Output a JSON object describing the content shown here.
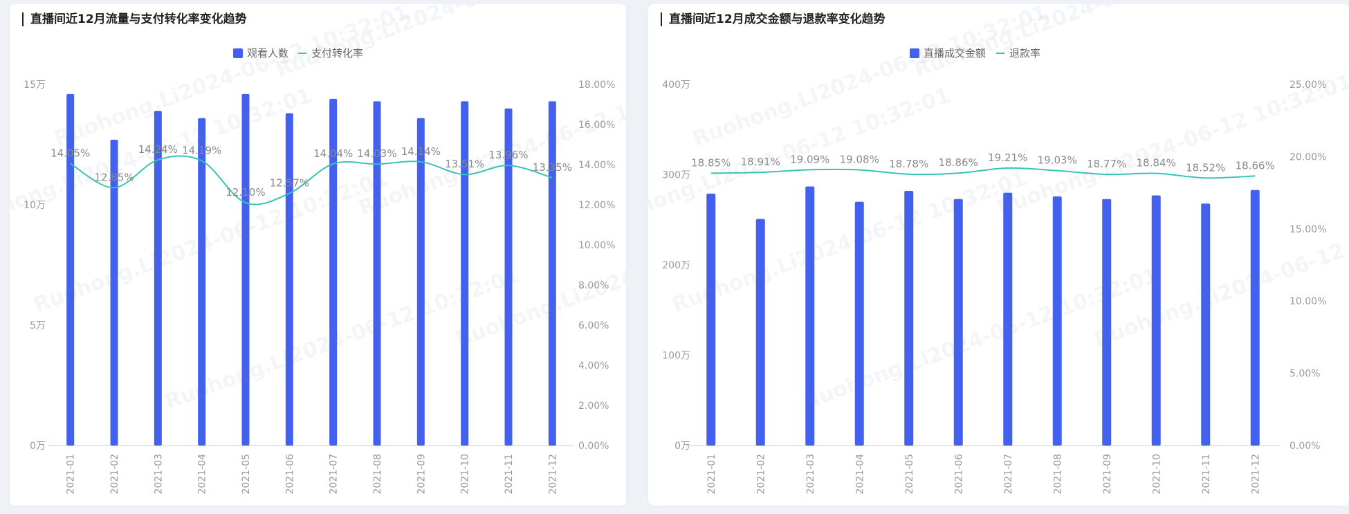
{
  "watermark": "Ruohong.Li2024-06-12 10:32:01",
  "colors": {
    "bar": "#4361ee",
    "line": "#36c5b4",
    "axis_text": "#9a9a9a",
    "label": "#8a8a8a"
  },
  "chart_data": [
    {
      "id": "traffic",
      "type": "bar",
      "title": "直播间近12月流量与支付转化率变化趋势",
      "categories": [
        "2021-01",
        "2021-02",
        "2021-03",
        "2021-04",
        "2021-05",
        "2021-06",
        "2021-07",
        "2021-08",
        "2021-09",
        "2021-10",
        "2021-11",
        "2021-12"
      ],
      "y_left": {
        "ticks": [
          "0万",
          "5万",
          "10万",
          "15万"
        ],
        "min": 0,
        "max": 150000
      },
      "y_right": {
        "ticks": [
          "0.00%",
          "2.00%",
          "4.00%",
          "6.00%",
          "8.00%",
          "10.00%",
          "12.00%",
          "14.00%",
          "16.00%",
          "18.00%"
        ],
        "min": 0,
        "max": 18
      },
      "series": [
        {
          "name": "观看人数",
          "kind": "bar",
          "axis": "left",
          "values": [
            146000,
            127000,
            139000,
            136000,
            146000,
            138000,
            144000,
            143000,
            136000,
            143000,
            140000,
            143000
          ]
        },
        {
          "name": "支付转化率",
          "kind": "line",
          "axis": "right",
          "values": [
            14.05,
            12.85,
            14.24,
            14.19,
            12.1,
            12.57,
            14.04,
            14.03,
            14.14,
            13.51,
            13.96,
            13.35
          ],
          "labels": [
            "14.05%",
            "12.85%",
            "14.24%",
            "14.19%",
            "12.10%",
            "12.57%",
            "14.04%",
            "14.03%",
            "14.14%",
            "13.51%",
            "13.96%",
            "13.35%"
          ]
        }
      ]
    },
    {
      "id": "gmv",
      "type": "bar",
      "title": "直播间近12月成交金额与退款率变化趋势",
      "categories": [
        "2021-01",
        "2021-02",
        "2021-03",
        "2021-04",
        "2021-05",
        "2021-06",
        "2021-07",
        "2021-08",
        "2021-09",
        "2021-10",
        "2021-11",
        "2021-12"
      ],
      "y_left": {
        "ticks": [
          "0万",
          "100万",
          "200万",
          "300万",
          "400万"
        ],
        "min": 0,
        "max": 4000000
      },
      "y_right": {
        "ticks": [
          "0.00%",
          "5.00%",
          "10.00%",
          "15.00%",
          "20.00%",
          "25.00%"
        ],
        "min": 0,
        "max": 25
      },
      "series": [
        {
          "name": "直播成交金额",
          "kind": "bar",
          "axis": "left",
          "values": [
            2790000,
            2510000,
            2870000,
            2700000,
            2820000,
            2730000,
            2800000,
            2760000,
            2730000,
            2770000,
            2680000,
            2830000
          ]
        },
        {
          "name": "退款率",
          "kind": "line",
          "axis": "right",
          "values": [
            18.85,
            18.91,
            19.09,
            19.08,
            18.78,
            18.86,
            19.21,
            19.03,
            18.77,
            18.84,
            18.52,
            18.66
          ],
          "labels": [
            "18.85%",
            "18.91%",
            "19.09%",
            "19.08%",
            "18.78%",
            "18.86%",
            "19.21%",
            "19.03%",
            "18.77%",
            "18.84%",
            "18.52%",
            "18.66%"
          ]
        }
      ]
    }
  ]
}
